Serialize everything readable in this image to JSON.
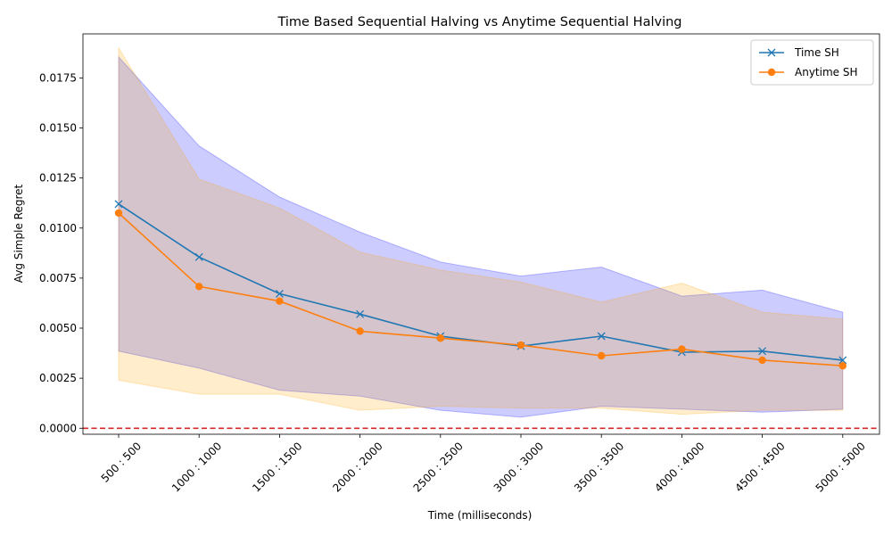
{
  "chart_data": {
    "type": "line",
    "title": "Time Based Sequential Halving vs Anytime Sequential Halving",
    "xlabel": "Time (milliseconds)",
    "ylabel": "Avg Simple Regret",
    "categories": [
      "500 : 500",
      "1000 : 1000",
      "1500 : 1500",
      "2000 : 2000",
      "2500 : 2500",
      "3000 : 3000",
      "3500 : 3500",
      "4000 : 4000",
      "4500 : 4500",
      "5000 : 5000"
    ],
    "ylim": [
      -0.0003,
      0.0197
    ],
    "yticks": [
      0.0,
      0.0025,
      0.005,
      0.0075,
      0.01,
      0.0125,
      0.015,
      0.0175
    ],
    "ytick_labels": [
      "0.0000",
      "0.0025",
      "0.0050",
      "0.0075",
      "0.0100",
      "0.0125",
      "0.0150",
      "0.0175"
    ],
    "grid": false,
    "legend_position": "top-right",
    "reference_line": {
      "y": 0.0,
      "color": "#d62728",
      "style": "dashed"
    },
    "series": [
      {
        "name": "Time SH",
        "color": "#1f77b4",
        "marker": "x",
        "band_color": "#0000ff",
        "values": [
          0.0112,
          0.00855,
          0.00672,
          0.0057,
          0.0046,
          0.0041,
          0.0046,
          0.0038,
          0.00385,
          0.0034
        ],
        "upper": [
          0.01855,
          0.0141,
          0.01155,
          0.0098,
          0.0083,
          0.0076,
          0.00805,
          0.0066,
          0.0069,
          0.0058
        ],
        "lower": [
          0.00385,
          0.003,
          0.0019,
          0.0016,
          0.0009,
          0.00055,
          0.0011,
          0.00095,
          0.0008,
          0.00095
        ]
      },
      {
        "name": "Anytime SH",
        "color": "#ff7f0e",
        "marker": "o",
        "band_color": "#ffa500",
        "values": [
          0.01075,
          0.00708,
          0.00635,
          0.00485,
          0.0045,
          0.00415,
          0.00362,
          0.00395,
          0.0034,
          0.00312
        ],
        "upper": [
          0.019,
          0.01245,
          0.011,
          0.0088,
          0.0079,
          0.0073,
          0.0063,
          0.00725,
          0.0058,
          0.00545
        ],
        "lower": [
          0.0024,
          0.0017,
          0.0017,
          0.0009,
          0.0011,
          0.001,
          0.001,
          0.0007,
          0.0009,
          0.0009
        ]
      }
    ]
  }
}
